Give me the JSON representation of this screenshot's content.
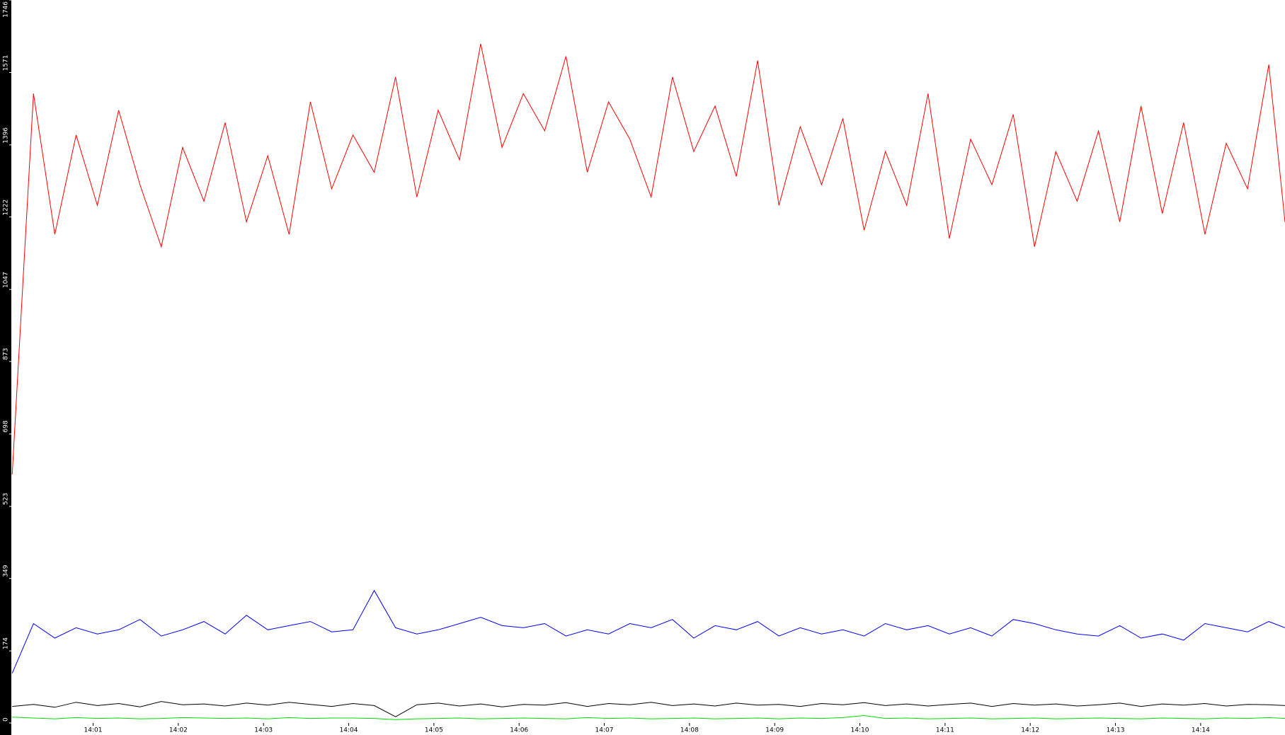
{
  "chart_data": {
    "type": "line",
    "x": [
      0.05,
      0.3,
      0.55,
      0.8,
      1.05,
      1.3,
      1.55,
      1.8,
      2.05,
      2.3,
      2.55,
      2.8,
      3.05,
      3.3,
      3.55,
      3.8,
      4.05,
      4.3,
      4.55,
      4.8,
      5.05,
      5.3,
      5.55,
      5.8,
      6.05,
      6.3,
      6.55,
      6.8,
      7.05,
      7.3,
      7.55,
      7.8,
      8.05,
      8.3,
      8.55,
      8.8,
      9.05,
      9.3,
      9.55,
      9.8,
      10.05,
      10.3,
      10.55,
      10.8,
      11.05,
      11.3,
      11.55,
      11.8,
      12.05,
      12.3,
      12.55,
      12.8,
      13.05,
      13.3,
      13.55,
      13.8,
      14.05,
      14.3,
      14.55,
      14.8,
      14.99
    ],
    "series": [
      {
        "color": "#ff0000",
        "values": [
          600,
          1520,
          1180,
          1420,
          1250,
          1480,
          1300,
          1150,
          1390,
          1260,
          1450,
          1210,
          1370,
          1180,
          1500,
          1290,
          1420,
          1330,
          1560,
          1270,
          1480,
          1360,
          1640,
          1390,
          1520,
          1430,
          1610,
          1330,
          1500,
          1410,
          1270,
          1560,
          1380,
          1490,
          1320,
          1600,
          1250,
          1440,
          1300,
          1460,
          1190,
          1380,
          1250,
          1520,
          1170,
          1410,
          1300,
          1470,
          1150,
          1380,
          1260,
          1430,
          1210,
          1490,
          1230,
          1450,
          1180,
          1400,
          1290,
          1590,
          1210
        ]
      },
      {
        "color": "#0000ff",
        "values": [
          120,
          240,
          205,
          230,
          215,
          225,
          250,
          210,
          225,
          245,
          215,
          260,
          225,
          235,
          245,
          220,
          225,
          320,
          230,
          215,
          225,
          240,
          255,
          235,
          230,
          240,
          210,
          225,
          215,
          240,
          230,
          250,
          205,
          235,
          225,
          245,
          210,
          230,
          215,
          225,
          210,
          240,
          225,
          235,
          215,
          230,
          210,
          250,
          240,
          225,
          215,
          210,
          235,
          205,
          215,
          200,
          240,
          230,
          220,
          245,
          230
        ]
      },
      {
        "color": "#000000",
        "values": [
          40,
          45,
          38,
          50,
          42,
          47,
          39,
          52,
          44,
          46,
          41,
          48,
          43,
          50,
          45,
          40,
          47,
          42,
          15,
          44,
          48,
          41,
          46,
          39,
          45,
          43,
          49,
          40,
          47,
          44,
          50,
          42,
          46,
          41,
          48,
          43,
          45,
          40,
          47,
          44,
          49,
          42,
          46,
          41,
          45,
          48,
          40,
          47,
          43,
          46,
          41,
          44,
          48,
          40,
          46,
          43,
          47,
          41,
          45,
          44,
          42
        ]
      },
      {
        "color": "#00dd00",
        "values": [
          14,
          12,
          10,
          13,
          11,
          12,
          10,
          11,
          13,
          12,
          11,
          12,
          10,
          13,
          11,
          12,
          12,
          11,
          8,
          10,
          11,
          12,
          10,
          11,
          12,
          11,
          10,
          13,
          11,
          12,
          10,
          11,
          12,
          10,
          11,
          12,
          10,
          12,
          11,
          13,
          18,
          11,
          12,
          10,
          11,
          12,
          10,
          11,
          12,
          10,
          11,
          12,
          11,
          10,
          12,
          11,
          10,
          12,
          11,
          13,
          11
        ]
      }
    ],
    "xlim": [
      0.04,
      14.99
    ],
    "xticks": [
      {
        "value": 1,
        "label": "14:01"
      },
      {
        "value": 2,
        "label": "14:02"
      },
      {
        "value": 3,
        "label": "14:03"
      },
      {
        "value": 4,
        "label": "14:04"
      },
      {
        "value": 5,
        "label": "14:05"
      },
      {
        "value": 6,
        "label": "14:06"
      },
      {
        "value": 7,
        "label": "14:07"
      },
      {
        "value": 8,
        "label": "14:08"
      },
      {
        "value": 9,
        "label": "14:09"
      },
      {
        "value": 10,
        "label": "14:10"
      },
      {
        "value": 11,
        "label": "14:11"
      },
      {
        "value": 12,
        "label": "14:12"
      },
      {
        "value": 13,
        "label": "14:13"
      },
      {
        "value": 14,
        "label": "14:14"
      }
    ],
    "ylim": [
      0,
      1746
    ],
    "yticks": [
      0,
      174,
      349,
      523,
      698,
      873,
      1047,
      1222,
      1396,
      1571,
      1746
    ]
  }
}
